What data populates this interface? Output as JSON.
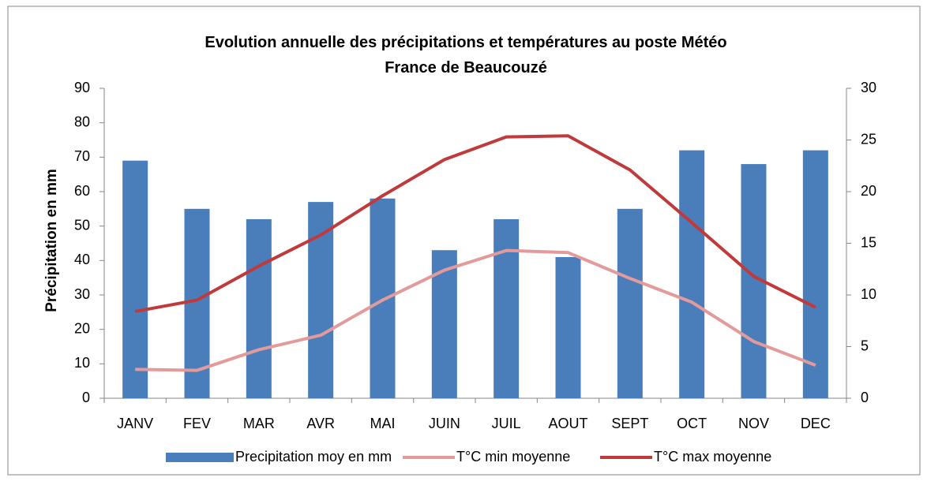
{
  "chart_data": {
    "type": "bar",
    "title": "Evolution annuelle des précipitations et températures au poste Météo France de Beaucouzé",
    "ylabel": "Précipitation en mm",
    "categories": [
      "JANV",
      "FEV",
      "MAR",
      "AVR",
      "MAI",
      "JUIN",
      "JUIL",
      "AOUT",
      "SEPT",
      "OCT",
      "NOV",
      "DEC"
    ],
    "series": [
      {
        "name": "Precipitation moy en mm",
        "type": "bar",
        "color": "#4a7ebb",
        "values": [
          69,
          55,
          52,
          57,
          58,
          43,
          52,
          41,
          55,
          72,
          68,
          72
        ]
      },
      {
        "name": "T°C min moyenne",
        "type": "line",
        "axis": "y2",
        "color": "#e39a9a",
        "values": [
          2.8,
          2.7,
          4.7,
          6.1,
          9.5,
          12.4,
          14.3,
          14.1,
          11.6,
          9.3,
          5.5,
          3.2
        ]
      },
      {
        "name": "T°C max moyenne",
        "type": "line",
        "axis": "y2",
        "color": "#c0393b",
        "values": [
          8.4,
          9.5,
          12.8,
          15.8,
          19.6,
          23.1,
          25.3,
          25.4,
          22.1,
          17.0,
          11.8,
          8.8
        ]
      }
    ],
    "ylim": [
      0,
      90
    ],
    "yticks": [
      0,
      10,
      20,
      30,
      40,
      50,
      60,
      70,
      80,
      90
    ],
    "y2lim": [
      0,
      30
    ],
    "y2ticks": [
      0,
      5,
      10,
      15,
      20,
      25,
      30
    ],
    "grid": false,
    "legend": "bottom"
  }
}
